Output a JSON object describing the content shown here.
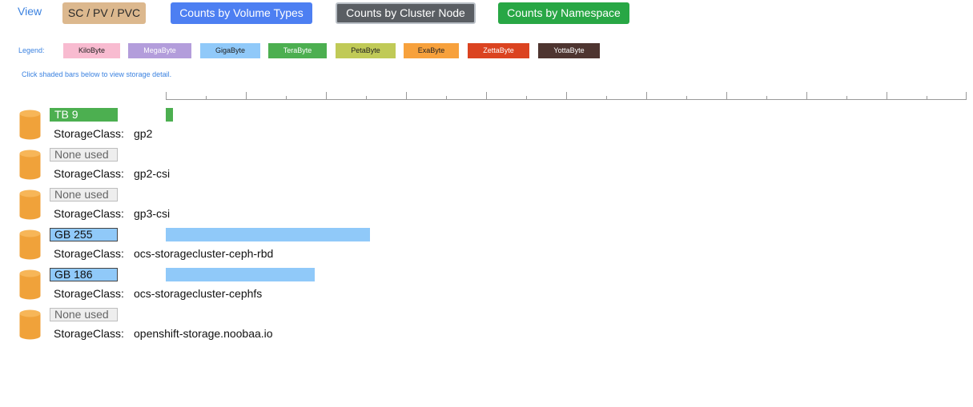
{
  "view": {
    "label": "View",
    "buttons": [
      {
        "label": "SC / PV / PVC",
        "color": "#dcb88e"
      },
      {
        "label": "Counts by Volume Types",
        "color": "#4d7ff2"
      },
      {
        "label": "Counts by Cluster Node",
        "color": "#5a5e63"
      },
      {
        "label": "Counts by Namespace",
        "color": "#28a745"
      }
    ]
  },
  "legend": {
    "label": "Legend:",
    "items": [
      {
        "label": "KiloByte",
        "color": "#f8bbd0"
      },
      {
        "label": "MegaByte",
        "color": "#b39ddb"
      },
      {
        "label": "GigaByte",
        "color": "#90c9f9"
      },
      {
        "label": "TeraByte",
        "color": "#4caf50"
      },
      {
        "label": "PetaByte",
        "color": "#c0ca57"
      },
      {
        "label": "ExaByte",
        "color": "#f7a13c"
      },
      {
        "label": "ZettaByte",
        "color": "#db4320"
      },
      {
        "label": "YottaByte",
        "color": "#4e3530"
      }
    ]
  },
  "hint": "Click shaded bars below to view storage detail.",
  "axis": {
    "max": 1000,
    "major_step": 100,
    "minor_step": 50
  },
  "rows": [
    {
      "unit": "TB",
      "amount": 9,
      "badge": "TB 9",
      "sc_label": "StorageClass:",
      "sc_name": "gp2"
    },
    {
      "unit": "",
      "amount": 0,
      "badge": "None used",
      "sc_label": "StorageClass:",
      "sc_name": "gp2-csi"
    },
    {
      "unit": "",
      "amount": 0,
      "badge": "None used",
      "sc_label": "StorageClass:",
      "sc_name": "gp3-csi"
    },
    {
      "unit": "GB",
      "amount": 255,
      "badge": "GB 255",
      "sc_label": "StorageClass:",
      "sc_name": "ocs-storagecluster-ceph-rbd"
    },
    {
      "unit": "GB",
      "amount": 186,
      "badge": "GB 186",
      "sc_label": "StorageClass:",
      "sc_name": "ocs-storagecluster-cephfs"
    },
    {
      "unit": "",
      "amount": 0,
      "badge": "None used",
      "sc_label": "StorageClass:",
      "sc_name": "openshift-storage.noobaa.io"
    }
  ],
  "colors": {
    "cylinder": "#f0a23a",
    "cylinder_top": "#f7b658",
    "tb_bar": "#4caf50",
    "gb_bar": "#90c9f9"
  }
}
